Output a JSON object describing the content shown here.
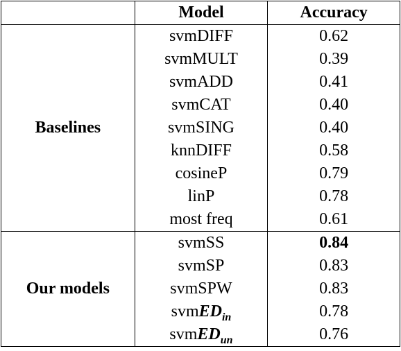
{
  "header": {
    "col_group": "",
    "col_model": "Model",
    "col_accuracy": "Accuracy"
  },
  "groups": [
    {
      "label": "Baselines",
      "rows": [
        {
          "model": "svmDIFF",
          "accuracy": "0.62"
        },
        {
          "model": "svmMULT",
          "accuracy": "0.39"
        },
        {
          "model": "svmADD",
          "accuracy": "0.41"
        },
        {
          "model": "svmCAT",
          "accuracy": "0.40"
        },
        {
          "model": "svmSING",
          "accuracy": "0.40"
        },
        {
          "model": "knnDIFF",
          "accuracy": "0.58"
        },
        {
          "model": "cosineP",
          "accuracy": "0.79"
        },
        {
          "model": "linP",
          "accuracy": "0.78"
        },
        {
          "model": "most freq",
          "accuracy": "0.61"
        }
      ]
    },
    {
      "label": "Our models",
      "rows": [
        {
          "model": "svmSS",
          "accuracy": "0.84",
          "best": true
        },
        {
          "model": "svmSP",
          "accuracy": "0.83"
        },
        {
          "model": "svmSPW",
          "accuracy": "0.83"
        },
        {
          "model_prefix": "svm",
          "model_math": "ED",
          "model_sub": "in",
          "accuracy": "0.78"
        },
        {
          "model_prefix": "svm",
          "model_math": "ED",
          "model_sub": "un",
          "accuracy": "0.76"
        }
      ]
    }
  ]
}
